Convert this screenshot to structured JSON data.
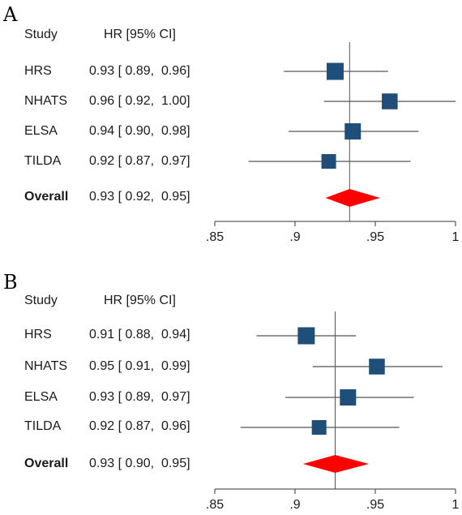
{
  "chart_data": [
    {
      "type": "forest",
      "panel": "A",
      "header": {
        "study": "Study",
        "estimate": "HR [95% CI]"
      },
      "rows": [
        {
          "label": "HRS",
          "text": "0.93 [ 0.89,  0.96]",
          "hr": 0.925,
          "lo": 0.893,
          "hi": 0.958,
          "weight": 1.0
        },
        {
          "label": "NHATS",
          "text": "0.96 [ 0.92,  1.00]",
          "hr": 0.959,
          "lo": 0.918,
          "hi": 1.0,
          "weight": 0.85
        },
        {
          "label": "ELSA",
          "text": "0.94 [ 0.90,  0.98]",
          "hr": 0.936,
          "lo": 0.896,
          "hi": 0.977,
          "weight": 0.9
        },
        {
          "label": "TILDA",
          "text": "0.92 [ 0.87,  0.97]",
          "hr": 0.921,
          "lo": 0.871,
          "hi": 0.972,
          "weight": 0.7
        }
      ],
      "overall": {
        "label": "Overall",
        "text": "0.93 [ 0.92,  0.95]",
        "hr": 0.934,
        "lo": 0.919,
        "hi": 0.953
      },
      "xticks": [
        0.85,
        0.9,
        0.95,
        1.0
      ],
      "xtick_labels": [
        ".85",
        ".9",
        ".95",
        "1"
      ],
      "xlim": [
        0.85,
        1.0
      ]
    },
    {
      "type": "forest",
      "panel": "B",
      "header": {
        "study": "Study",
        "estimate": "HR [95% CI]"
      },
      "rows": [
        {
          "label": "HRS",
          "text": "0.91 [ 0.88,  0.94]",
          "hr": 0.907,
          "lo": 0.876,
          "hi": 0.938,
          "weight": 1.0
        },
        {
          "label": "NHATS",
          "text": "0.95 [ 0.91,  0.99]",
          "hr": 0.951,
          "lo": 0.911,
          "hi": 0.992,
          "weight": 0.85
        },
        {
          "label": "ELSA",
          "text": "0.93 [ 0.89,  0.97]",
          "hr": 0.933,
          "lo": 0.894,
          "hi": 0.974,
          "weight": 0.9
        },
        {
          "label": "TILDA",
          "text": "0.92 [ 0.87,  0.96]",
          "hr": 0.915,
          "lo": 0.866,
          "hi": 0.965,
          "weight": 0.7
        }
      ],
      "overall": {
        "label": "Overall",
        "text": "0.93 [ 0.90,  0.95]",
        "hr": 0.925,
        "lo": 0.905,
        "hi": 0.946
      },
      "xticks": [
        0.85,
        0.9,
        0.95,
        1.0
      ],
      "xtick_labels": [
        ".85",
        ".9",
        ".95",
        "1"
      ],
      "xlim": [
        0.85,
        1.0
      ]
    }
  ],
  "colors": {
    "square": "#1f4e79",
    "diamond": "#ff0000",
    "line": "#555555",
    "axis": "#333333"
  }
}
